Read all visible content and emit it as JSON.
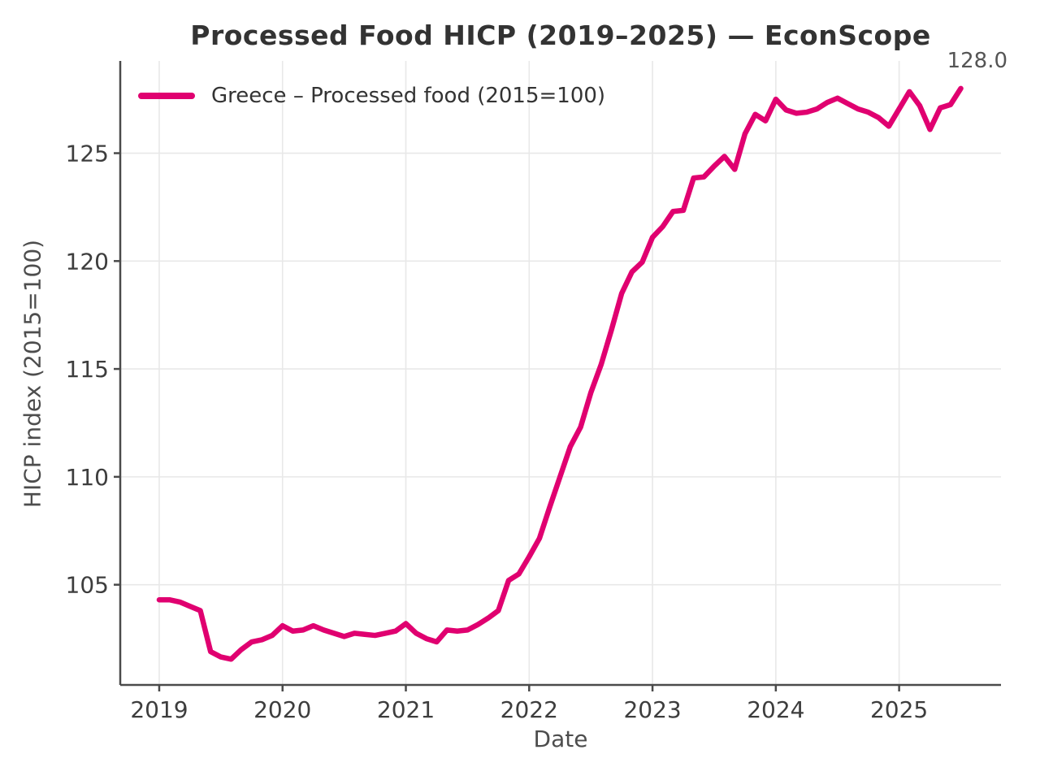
{
  "title": "Processed Food HICP (2019–2025) — EconScope",
  "annotation": {
    "text": "128.0"
  },
  "legend": {
    "label": "Greece – Processed food (2015=100)"
  },
  "axes": {
    "x_label": "Date",
    "y_label": "HICP index (2015=100)"
  },
  "colors": {
    "line": "#e00070",
    "grid": "#e8e8e8",
    "spine": "#4a4a4a",
    "title_text": "#333333",
    "tick_text": "#3d3d3d",
    "label_text": "#4d4d4d",
    "annotation_text": "#555555",
    "background": "#ffffff"
  },
  "chart_data": {
    "type": "line",
    "title": "Processed Food HICP (2019–2025) — EconScope",
    "xlabel": "Date",
    "ylabel": "HICP index (2015=100)",
    "grid": true,
    "legend_position": "upper-left",
    "series": [
      {
        "name": "Greece – Processed food (2015=100)",
        "x_start": "2019-01",
        "x_end": "2025-07",
        "frequency": "monthly",
        "values": [
          104.3,
          104.3,
          104.2,
          104.0,
          103.8,
          101.9,
          101.65,
          101.55,
          102.0,
          102.35,
          102.45,
          102.65,
          103.1,
          102.85,
          102.9,
          103.1,
          102.9,
          102.75,
          102.6,
          102.75,
          102.7,
          102.65,
          102.75,
          102.85,
          103.2,
          102.75,
          102.5,
          102.35,
          102.9,
          102.85,
          102.9,
          103.15,
          103.45,
          103.8,
          105.2,
          105.5,
          106.3,
          107.15,
          108.6,
          110.0,
          111.4,
          112.3,
          113.9,
          115.2,
          116.8,
          118.5,
          119.5,
          119.95,
          121.1,
          121.6,
          122.3,
          122.35,
          123.85,
          123.9,
          124.4,
          124.85,
          124.25,
          125.9,
          126.8,
          126.5,
          127.5,
          127.0,
          126.85,
          126.9,
          127.05,
          127.35,
          127.55,
          127.3,
          127.05,
          126.9,
          126.65,
          126.25,
          127.05,
          127.85,
          127.2,
          126.1,
          127.1,
          127.25,
          128.0
        ]
      }
    ],
    "last_value_annotation": "128.0",
    "x_tick_labels": [
      "2019",
      "2020",
      "2021",
      "2022",
      "2023",
      "2024",
      "2025"
    ],
    "y_tick_labels": [
      "105",
      "110",
      "115",
      "120",
      "125"
    ],
    "y_ticks": [
      105,
      110,
      115,
      120,
      125
    ],
    "x_ticks_years": [
      2019,
      2020,
      2021,
      2022,
      2023,
      2024,
      2025
    ],
    "ylim": [
      100.355,
      129.275
    ],
    "xlim_years": [
      2018.684,
      2025.826
    ]
  }
}
